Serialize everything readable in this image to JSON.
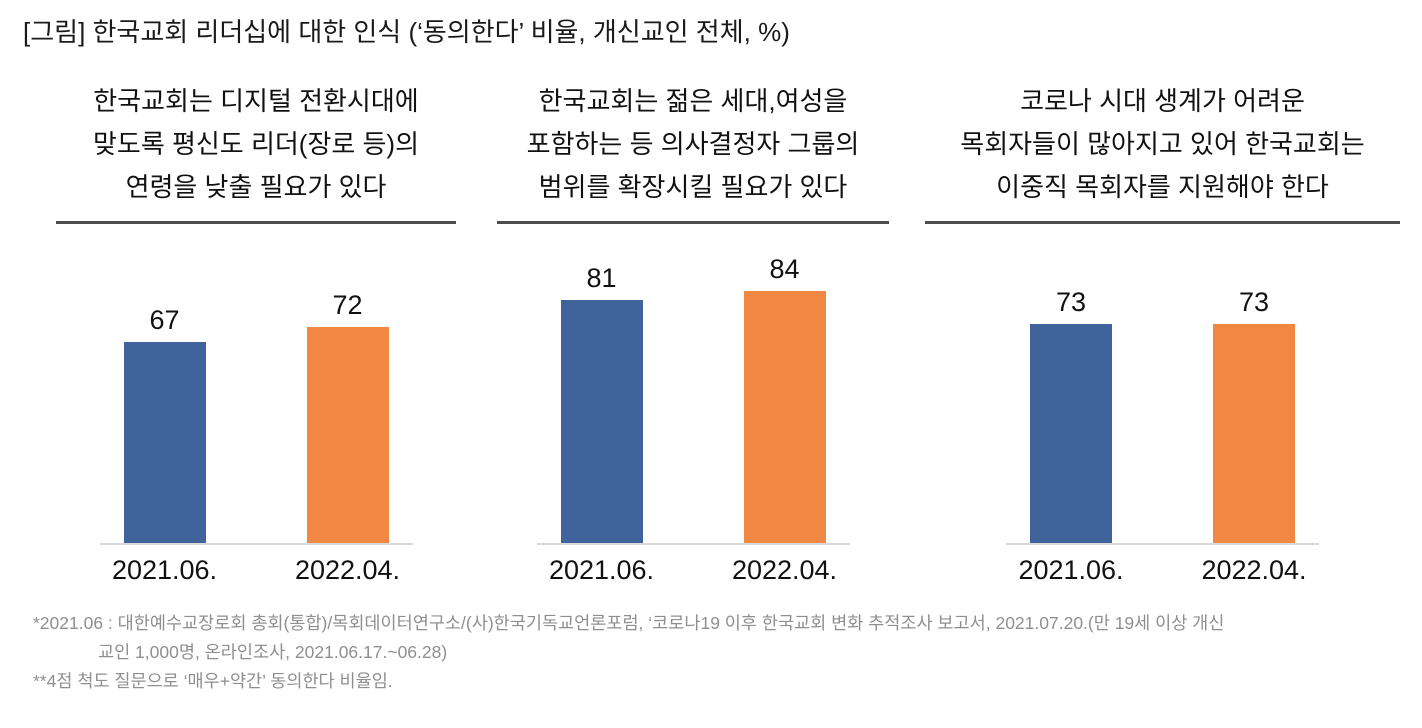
{
  "title": "[그림] 한국교회 리더십에 대한 인식 (‘동의한다’ 비율, 개신교인 전체, %)",
  "colors": {
    "bar_2021_06": "#41639b",
    "bar_2022_04": "#f08843",
    "heading_rule": "#4d4d4d",
    "axis_baseline": "#d9d9d9",
    "footnote_text": "#8f8f8f"
  },
  "chart_data": [
    {
      "type": "bar",
      "title": "한국교회는 디지털 전환시대에 맞도록 평신도 리더(장로 등)의 연령을 낮출 필요가 있다",
      "title_lines": [
        "한국교회는 디지털 전환시대에",
        "맞도록 평신도 리더(장로 등)의",
        "연령을 낮출 필요가 있다"
      ],
      "categories": [
        "2021.06.",
        "2022.04."
      ],
      "values": [
        67,
        72
      ],
      "series_colors": [
        "#41639b",
        "#f08843"
      ],
      "unit": "%",
      "ylim": [
        0,
        100
      ],
      "grid": false,
      "legend": "none"
    },
    {
      "type": "bar",
      "title": "한국교회는 젊은 세대,여성을 포함하는 등 의사결정자 그룹의 범위를 확장시킬 필요가 있다",
      "title_lines": [
        "한국교회는 젊은 세대,여성을",
        "포함하는 등 의사결정자 그룹의",
        "범위를 확장시킬 필요가 있다"
      ],
      "categories": [
        "2021.06.",
        "2022.04."
      ],
      "values": [
        81,
        84
      ],
      "series_colors": [
        "#41639b",
        "#f08843"
      ],
      "unit": "%",
      "ylim": [
        0,
        100
      ],
      "grid": false,
      "legend": "none"
    },
    {
      "type": "bar",
      "title": "코로나 시대 생계가 어려운 목회자들이 많아지고 있어 한국교회는 이중직 목회자를 지원해야 한다",
      "title_lines": [
        "코로나 시대 생계가 어려운",
        "목회자들이 많아지고 있어 한국교회는",
        "이중직 목회자를 지원해야 한다"
      ],
      "categories": [
        "2021.06.",
        "2022.04."
      ],
      "values": [
        73,
        73
      ],
      "series_colors": [
        "#41639b",
        "#f08843"
      ],
      "unit": "%",
      "ylim": [
        0,
        100
      ],
      "grid": false,
      "legend": "none"
    }
  ],
  "footnotes": [
    "*2021.06 : 대한예수교장로회 총회(통합)/목회데이터연구소/(사)한국기독교언론포럼, ‘코로나19 이후 한국교회 변화 추적조사 보고서, 2021.07.20.(만 19세 이상 개신",
    "교인 1,000명, 온라인조사, 2021.06.17.~06.28)",
    "**4점 척도 질문으로 ‘매우+약간’ 동의한다 비율임."
  ]
}
